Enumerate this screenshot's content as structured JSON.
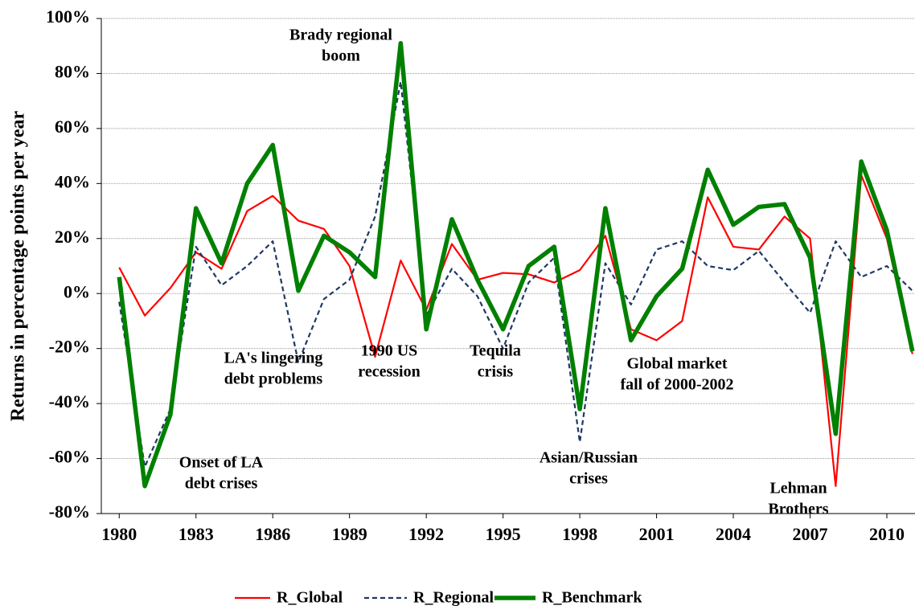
{
  "chart_data": {
    "type": "line",
    "y_label": "Returns in percentage points per year",
    "x": [
      1980,
      1981,
      1982,
      1983,
      1984,
      1985,
      1986,
      1987,
      1988,
      1989,
      1990,
      1991,
      1992,
      1993,
      1994,
      1995,
      1996,
      1997,
      1998,
      1999,
      2000,
      2001,
      2002,
      2003,
      2004,
      2005,
      2006,
      2007,
      2008,
      2009,
      2010,
      2011
    ],
    "xlim": [
      1979.3,
      2011.1
    ],
    "xticks": [
      1980,
      1983,
      1986,
      1989,
      1992,
      1995,
      1998,
      2001,
      2004,
      2007,
      2010
    ],
    "ylim": [
      -80,
      100
    ],
    "yticks": [
      {
        "value": -80,
        "label": "-80%"
      },
      {
        "value": -60,
        "label": "-60%"
      },
      {
        "value": -40,
        "label": "-40%"
      },
      {
        "value": -20,
        "label": "-20%"
      },
      {
        "value": 0,
        "label": "0%"
      },
      {
        "value": 20,
        "label": "20%"
      },
      {
        "value": 40,
        "label": "40%"
      },
      {
        "value": 60,
        "label": "60%"
      },
      {
        "value": 80,
        "label": "80%"
      },
      {
        "value": 100,
        "label": "100%"
      }
    ],
    "grid": true,
    "series": [
      {
        "name": "R_Global",
        "color": "#ff0000",
        "values": [
          9.5,
          -8,
          2,
          15,
          9,
          30,
          35.5,
          26.5,
          23.5,
          10,
          -23,
          12,
          -6,
          18,
          5,
          7.5,
          7,
          4,
          8.5,
          21,
          -13,
          -17,
          -10,
          35,
          17,
          16,
          28,
          20,
          -70,
          43,
          20,
          -22
        ]
      },
      {
        "name": "R_Regional",
        "color": "#1f3864",
        "values": [
          -3,
          -63,
          -42,
          17,
          3,
          10,
          19,
          -25,
          -2,
          5,
          28,
          77,
          -8,
          9,
          -1,
          -20,
          4,
          13,
          -54,
          11,
          -4,
          16,
          19,
          10,
          8.5,
          15.5,
          4,
          -7,
          19,
          6,
          10,
          1
        ]
      },
      {
        "name": "R_Benchmark",
        "color": "#008000",
        "values": [
          6,
          -70,
          -44,
          31,
          11,
          40,
          54,
          1,
          21,
          15,
          6,
          91,
          -13,
          27,
          5,
          -13,
          10,
          17,
          -42,
          31,
          -17,
          -1,
          9,
          45,
          25,
          31.5,
          32.5,
          13,
          -51,
          48,
          23,
          -21
        ]
      }
    ],
    "annotations": [
      [
        "Brady regional",
        "boom"
      ],
      [
        "LA's lingering",
        "debt problems"
      ],
      [
        "1990 US",
        "recession"
      ],
      [
        "Onset of LA",
        "debt crises"
      ],
      [
        "Tequila",
        "crisis"
      ],
      [
        "Asian/Russian",
        "crises"
      ],
      [
        "Global market",
        "fall of 2000-2002"
      ],
      [
        "Lehman",
        "Brothers"
      ]
    ]
  }
}
